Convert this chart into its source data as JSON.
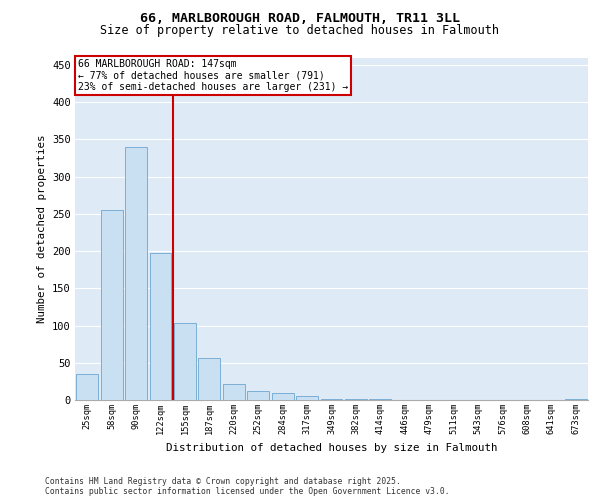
{
  "title_line1": "66, MARLBOROUGH ROAD, FALMOUTH, TR11 3LL",
  "title_line2": "Size of property relative to detached houses in Falmouth",
  "xlabel": "Distribution of detached houses by size in Falmouth",
  "ylabel": "Number of detached properties",
  "categories": [
    "25sqm",
    "58sqm",
    "90sqm",
    "122sqm",
    "155sqm",
    "187sqm",
    "220sqm",
    "252sqm",
    "284sqm",
    "317sqm",
    "349sqm",
    "382sqm",
    "414sqm",
    "446sqm",
    "479sqm",
    "511sqm",
    "543sqm",
    "576sqm",
    "608sqm",
    "641sqm",
    "673sqm"
  ],
  "values": [
    35,
    255,
    340,
    198,
    104,
    57,
    22,
    12,
    9,
    5,
    2,
    1,
    1,
    0,
    0,
    0,
    0,
    0,
    0,
    0,
    2
  ],
  "bar_color": "#c9dff2",
  "bar_edge_color": "#7bafd4",
  "vline_x": 3.5,
  "vline_color": "#cc0000",
  "annotation_text": "66 MARLBOROUGH ROAD: 147sqm\n← 77% of detached houses are smaller (791)\n23% of semi-detached houses are larger (231) →",
  "annotation_box_color": "#ffffff",
  "annotation_box_edge": "#cc0000",
  "ylim": [
    0,
    460
  ],
  "yticks": [
    0,
    50,
    100,
    150,
    200,
    250,
    300,
    350,
    400,
    450
  ],
  "bg_color": "#deeaf6",
  "grid_color": "#ffffff",
  "footer_line1": "Contains HM Land Registry data © Crown copyright and database right 2025.",
  "footer_line2": "Contains public sector information licensed under the Open Government Licence v3.0."
}
